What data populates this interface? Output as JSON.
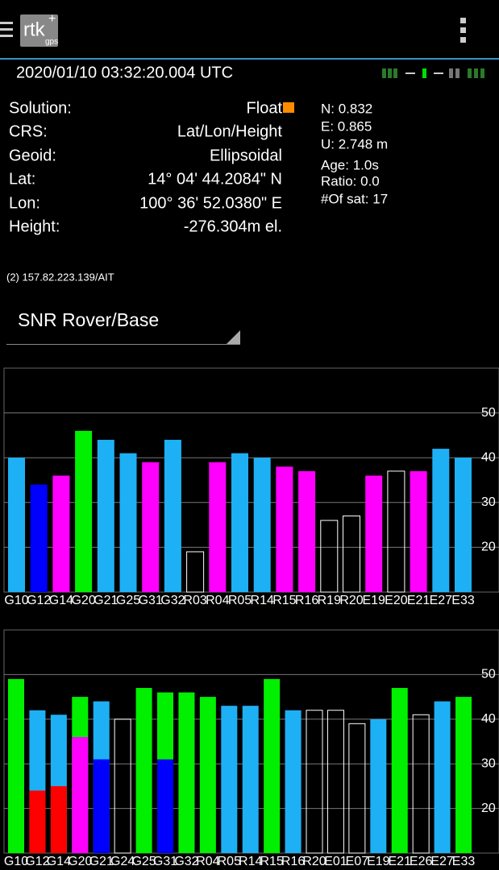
{
  "header": {
    "logo": "rtk",
    "logo_sub": "gps"
  },
  "time": "2020/01/10 03:32:20.004 UTC",
  "solution": [
    [
      "Solution:",
      "Float"
    ],
    [
      "CRS:",
      "Lat/Lon/Height"
    ],
    [
      "Geoid:",
      "Ellipsoidal"
    ],
    [
      "Lat:",
      "14° 04' 44.2084\" N"
    ],
    [
      "Lon:",
      "100° 36' 52.0380\" E"
    ],
    [
      "Height:",
      "-276.304m el."
    ]
  ],
  "stats": [
    "N: 0.832",
    "E: 0.865",
    "U: 2.748 m",
    "Age: 1.0s",
    "Ratio: 0.0",
    "#Of sat: 17"
  ],
  "connection": "(2) 157.82.223.139/AIT",
  "selector": "SNR Rover/Base",
  "chart_data": [
    {
      "type": "bar",
      "categories": [
        "G10",
        "G12",
        "G14",
        "G20",
        "G21",
        "G25",
        "G31",
        "G32",
        "R03",
        "R04",
        "R05",
        "R14",
        "R15",
        "R16",
        "R19",
        "R20",
        "E19",
        "E20",
        "E21",
        "E27",
        "E33"
      ],
      "series": [
        {
          "values": [
            40,
            34,
            36,
            46,
            44,
            41,
            39,
            44,
            19,
            39,
            41,
            40,
            38,
            37,
            26,
            27,
            36,
            37,
            37,
            42,
            40
          ],
          "colors": [
            "#1eb0f5",
            "#0000ff",
            "#ff00ff",
            "#00f000",
            "#1eb0f5",
            "#1eb0f5",
            "#ff00ff",
            "#1eb0f5",
            "none",
            "#ff00ff",
            "#1eb0f5",
            "#1eb0f5",
            "#ff00ff",
            "#ff00ff",
            "none",
            "none",
            "#ff00ff",
            "none",
            "#ff00ff",
            "#1eb0f5",
            "#1eb0f5"
          ]
        }
      ],
      "ylim": [
        10,
        60
      ],
      "yticks": [
        20,
        30,
        40,
        50
      ],
      "grid": true
    },
    {
      "type": "bar",
      "categories": [
        "G10",
        "G12",
        "G14",
        "G20",
        "G21",
        "G24",
        "G25",
        "G31",
        "G32",
        "R04",
        "R05",
        "R14",
        "R15",
        "R16",
        "R20",
        "E01",
        "E07",
        "E19",
        "E21",
        "E26",
        "E27",
        "E33"
      ],
      "series": [
        {
          "values": [
            49,
            42,
            41,
            45,
            44,
            40,
            47,
            46,
            46,
            45,
            43,
            43,
            49,
            42,
            42,
            42,
            39,
            40,
            47,
            41,
            44,
            45
          ],
          "colors": [
            "#00f000",
            "#1eb0f5",
            "#1eb0f5",
            "#00f000",
            "#1eb0f5",
            "none",
            "#00f000",
            "#00f000",
            "#00f000",
            "#00f000",
            "#1eb0f5",
            "#1eb0f5",
            "#00f000",
            "#1eb0f5",
            "none",
            "none",
            "none",
            "#1eb0f5",
            "#00f000",
            "none",
            "#1eb0f5",
            "#00f000"
          ]
        },
        {
          "values": [
            null,
            24,
            25,
            36,
            31,
            null,
            null,
            31,
            null,
            null,
            null,
            null,
            null,
            null,
            null,
            null,
            null,
            null,
            null,
            null,
            null,
            null
          ],
          "colors": [
            null,
            "#ff0000",
            "#ff0000",
            "#ff00ff",
            "#0000ff",
            null,
            null,
            "#0000ff",
            null,
            null,
            null,
            null,
            null,
            null,
            null,
            null,
            null,
            null,
            null,
            null,
            null,
            null
          ]
        }
      ],
      "ylim": [
        10,
        60
      ],
      "yticks": [
        20,
        30,
        40,
        50
      ],
      "grid": true
    }
  ]
}
